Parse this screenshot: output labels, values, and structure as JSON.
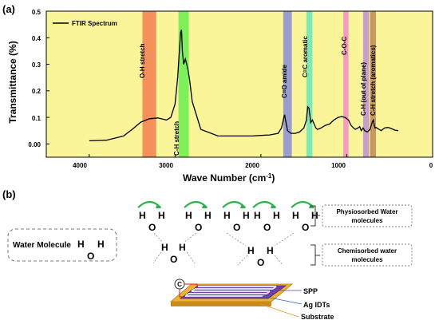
{
  "panel_a": {
    "label": "(a)",
    "ylabel": "Transmittance (%)",
    "xlabel": "Wave Number (cm",
    "xlabel_sup": "-1",
    "xlabel_close": ")",
    "legend": "FTIR Spectrum",
    "x_ticks": [
      "4000",
      "3000",
      "2000",
      "1000",
      "0"
    ],
    "y_ticks": [
      "0.00",
      "0.1",
      "0.2",
      "0.3",
      "0.4",
      "0.5"
    ],
    "bands": [
      {
        "label": "O-H stretch",
        "color": "#f5905a"
      },
      {
        "label": "C-H stretch",
        "color": "#7ef05a"
      },
      {
        "label": "C=O amide",
        "color": "#9b9dcf"
      },
      {
        "label": "C=C aromatic",
        "color": "#7fe9b5"
      },
      {
        "label": "C-O-C",
        "color": "#f59ac0"
      },
      {
        "label": "C-H (out of plane)",
        "color": "#c6a0c8"
      },
      {
        "label": "C-H stretch (aromatics)",
        "color": "#c89a5e"
      }
    ]
  },
  "panel_b": {
    "label": "(b)",
    "water_molecule_label": "Water Molecule",
    "physisorbed_label_1": "Physiosorbed Water",
    "physisorbed_label_2": "molecules",
    "chemisorbed_label_1": "Chemisorbed water",
    "chemisorbed_label_2": "molecules",
    "atom_h": "H",
    "atom_o": "O",
    "capacitor_symbol": "C",
    "device_labels": {
      "spp": "SPP",
      "ag_idts": "Ag IDTs",
      "substrate": "Substrate"
    }
  },
  "colors": {
    "plot_bg": "#fbf59a",
    "oxygen": "#e8161b",
    "arrow": "#2bb24c",
    "spp_text": "#6a3aa1",
    "idt_text": "#2f63c0",
    "substrate_text": "#d99a18"
  },
  "chart_data": {
    "type": "line",
    "title": "",
    "xlabel": "Wave Number (cm-1)",
    "ylabel": "Transmittance (%)",
    "xlim": [
      4500,
      0
    ],
    "ylim": [
      -0.05,
      0.5
    ],
    "series": [
      {
        "name": "FTIR Spectrum",
        "x": [
          4000,
          3800,
          3600,
          3500,
          3400,
          3300,
          3200,
          3100,
          3050,
          3000,
          2970,
          2950,
          2935,
          2925,
          2915,
          2900,
          2880,
          2865,
          2850,
          2830,
          2800,
          2700,
          2500,
          2300,
          2100,
          2000,
          1900,
          1800,
          1760,
          1740,
          1725,
          1710,
          1690,
          1650,
          1600,
          1550,
          1500,
          1470,
          1455,
          1440,
          1420,
          1400,
          1380,
          1360,
          1340,
          1300,
          1250,
          1200,
          1150,
          1100,
          1060,
          1020,
          980,
          950,
          920,
          900,
          870,
          850,
          830,
          810,
          790,
          760,
          730,
          700,
          690,
          680,
          670,
          660,
          640,
          600,
          560,
          520,
          480,
          440,
          400
        ],
        "y": [
          0.012,
          0.014,
          0.03,
          0.055,
          0.082,
          0.095,
          0.098,
          0.09,
          0.1,
          0.15,
          0.25,
          0.35,
          0.42,
          0.43,
          0.35,
          0.3,
          0.32,
          0.3,
          0.28,
          0.24,
          0.16,
          0.055,
          0.03,
          0.03,
          0.03,
          0.032,
          0.034,
          0.04,
          0.06,
          0.09,
          0.11,
          0.085,
          0.05,
          0.04,
          0.04,
          0.045,
          0.06,
          0.09,
          0.14,
          0.135,
          0.08,
          0.09,
          0.075,
          0.06,
          0.055,
          0.06,
          0.07,
          0.075,
          0.09,
          0.1,
          0.103,
          0.1,
          0.09,
          0.07,
          0.06,
          0.055,
          0.06,
          0.065,
          0.05,
          0.06,
          0.05,
          0.045,
          0.055,
          0.085,
          0.09,
          0.07,
          0.06,
          0.062,
          0.058,
          0.05,
          0.06,
          0.062,
          0.058,
          0.052,
          0.05
        ]
      }
    ],
    "bands_cm": [
      {
        "label": "O-H stretch",
        "from": 3380,
        "to": 3220
      },
      {
        "label": "C-H stretch",
        "from": 2960,
        "to": 2840
      },
      {
        "label": "C=O amide",
        "from": 1740,
        "to": 1640
      },
      {
        "label": "C=C aromatic",
        "from": 1470,
        "to": 1400
      },
      {
        "label": "C-O-C",
        "from": 1040,
        "to": 980
      },
      {
        "label": "C-H (out of plane)",
        "from": 810,
        "to": 740
      },
      {
        "label": "C-H stretch (aromatics)",
        "from": 730,
        "to": 660
      }
    ],
    "grid": false,
    "legend": "top-left"
  }
}
